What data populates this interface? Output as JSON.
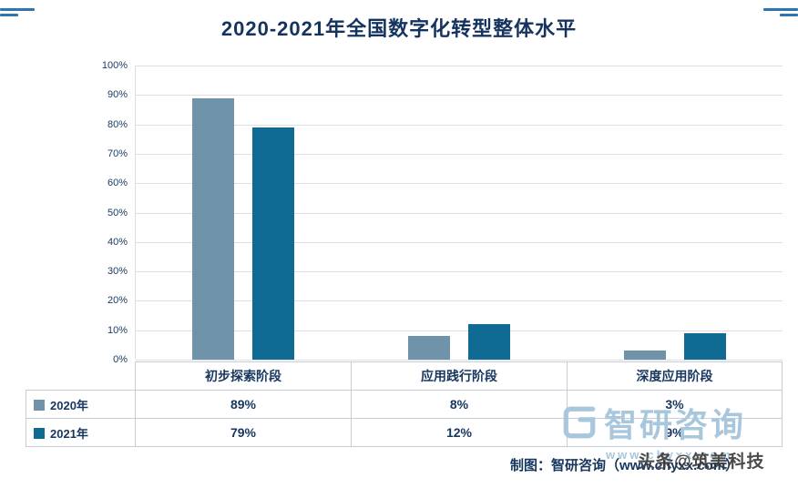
{
  "chart_data": {
    "type": "bar",
    "title": "2020-2021年全国数字化转型整体水平",
    "categories": [
      "初步探索阶段",
      "应用践行阶段",
      "深度应用阶段"
    ],
    "series": [
      {
        "name": "2020年",
        "color": "#6f94a9",
        "values": [
          89,
          8,
          3
        ]
      },
      {
        "name": "2021年",
        "color": "#0f6a94",
        "values": [
          79,
          12,
          9
        ]
      }
    ],
    "ylim": [
      0,
      100
    ],
    "yticks": [
      0,
      10,
      20,
      30,
      40,
      50,
      60,
      70,
      80,
      90,
      100
    ],
    "ytick_suffix": "%",
    "value_suffix": "%",
    "grid": true,
    "legend_position": "table-below"
  },
  "footer": {
    "source": "制图：智研咨询（www.chyxx.com）"
  },
  "watermark": {
    "brand": "智研咨询",
    "url": "www.chyxx.com",
    "overlay": "头条@筑美科技",
    "brand_color": "#a9c7dc",
    "fragment_color": "#2e74b5"
  }
}
